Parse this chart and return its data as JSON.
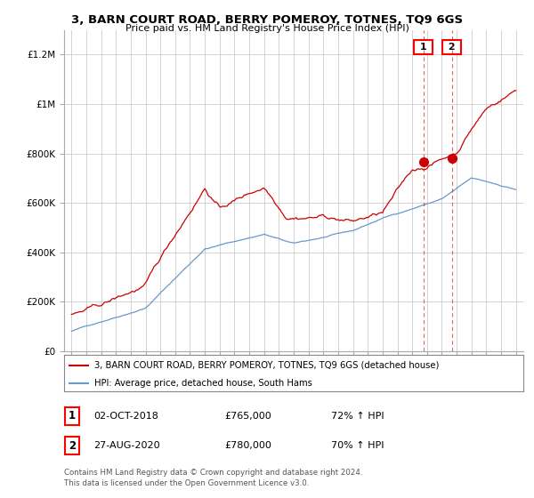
{
  "title": "3, BARN COURT ROAD, BERRY POMEROY, TOTNES, TQ9 6GS",
  "subtitle": "Price paid vs. HM Land Registry's House Price Index (HPI)",
  "legend_line1": "3, BARN COURT ROAD, BERRY POMEROY, TOTNES, TQ9 6GS (detached house)",
  "legend_line2": "HPI: Average price, detached house, South Hams",
  "footer1": "Contains HM Land Registry data © Crown copyright and database right 2024.",
  "footer2": "This data is licensed under the Open Government Licence v3.0.",
  "transaction1_label": "1",
  "transaction1_date": "02-OCT-2018",
  "transaction1_price": "£765,000",
  "transaction1_hpi": "72% ↑ HPI",
  "transaction2_label": "2",
  "transaction2_date": "27-AUG-2020",
  "transaction2_price": "£780,000",
  "transaction2_hpi": "70% ↑ HPI",
  "red_color": "#cc0000",
  "blue_color": "#6699cc",
  "dashed_color": "#cc0000",
  "background_color": "#ffffff",
  "grid_color": "#cccccc",
  "marker1_x": 2018.75,
  "marker2_x": 2020.67,
  "marker1_y": 765000,
  "marker2_y": 780000,
  "vline1_x": 2018.75,
  "vline2_x": 2020.67,
  "ylim_min": 0,
  "ylim_max": 1300000,
  "xlim_min": 1994.5,
  "xlim_max": 2025.5,
  "yticks": [
    0,
    200000,
    400000,
    600000,
    800000,
    1000000,
    1200000
  ],
  "ytick_labels": [
    "£0",
    "£200K",
    "£400K",
    "£600K",
    "£800K",
    "£1M",
    "£1.2M"
  ],
  "xticks": [
    1995,
    1996,
    1997,
    1998,
    1999,
    2000,
    2001,
    2002,
    2003,
    2004,
    2005,
    2006,
    2007,
    2008,
    2009,
    2010,
    2011,
    2012,
    2013,
    2014,
    2015,
    2016,
    2017,
    2018,
    2019,
    2020,
    2021,
    2022,
    2023,
    2024,
    2025
  ]
}
